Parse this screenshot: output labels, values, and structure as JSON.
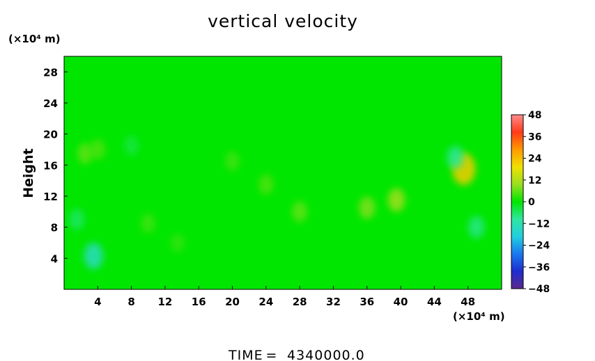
{
  "chart_data": {
    "type": "heatmap",
    "title": "vertical velocity",
    "ylabel": "Height",
    "xlabel": "",
    "x_unit": "(×10⁴ m)",
    "y_unit": "(×10⁴ m)",
    "xlim": [
      0,
      52
    ],
    "ylim": [
      0,
      30
    ],
    "x_ticks": [
      "4",
      "8",
      "12",
      "16",
      "20",
      "24",
      "28",
      "32",
      "36",
      "40",
      "44",
      "48"
    ],
    "y_ticks": [
      "4",
      "8",
      "12",
      "16",
      "20",
      "24",
      "28"
    ],
    "colorbar": {
      "range": [
        -48,
        48
      ],
      "ticks": [
        "48",
        "36",
        "24",
        "12",
        "0",
        "-12",
        "-24",
        "-36",
        "-48"
      ],
      "colors": [
        "#5a2a8c",
        "#1f2ccf",
        "#1a78ee",
        "#22cfe0",
        "#2fe6a0",
        "#00e600",
        "#9adf20",
        "#f0e000",
        "#ff9a00",
        "#ff3a1a",
        "#ff8c8c"
      ]
    },
    "background_value": 0,
    "features": [
      {
        "x": 3.5,
        "y": 4.3,
        "value": -14
      },
      {
        "x": 2.5,
        "y": 17.5,
        "value": 6
      },
      {
        "x": 4.0,
        "y": 18.0,
        "value": 5
      },
      {
        "x": 47.5,
        "y": 15.5,
        "value": 22
      },
      {
        "x": 46.5,
        "y": 17.0,
        "value": -9
      },
      {
        "x": 49.0,
        "y": 8.0,
        "value": -8
      },
      {
        "x": 39.5,
        "y": 11.5,
        "value": 10
      },
      {
        "x": 36.0,
        "y": 10.5,
        "value": 8
      },
      {
        "x": 28.0,
        "y": 10.0,
        "value": 6
      },
      {
        "x": 24.0,
        "y": 13.5,
        "value": 5
      },
      {
        "x": 20.0,
        "y": 16.5,
        "value": 4
      },
      {
        "x": 10.0,
        "y": 8.5,
        "value": 4
      },
      {
        "x": 13.5,
        "y": 6.0,
        "value": 3
      },
      {
        "x": 8.0,
        "y": 18.5,
        "value": -4
      },
      {
        "x": 1.5,
        "y": 9.0,
        "value": -6
      }
    ]
  },
  "footer": {
    "time_label": "TIME",
    "equals": "=",
    "time_value": "4340000.0"
  }
}
